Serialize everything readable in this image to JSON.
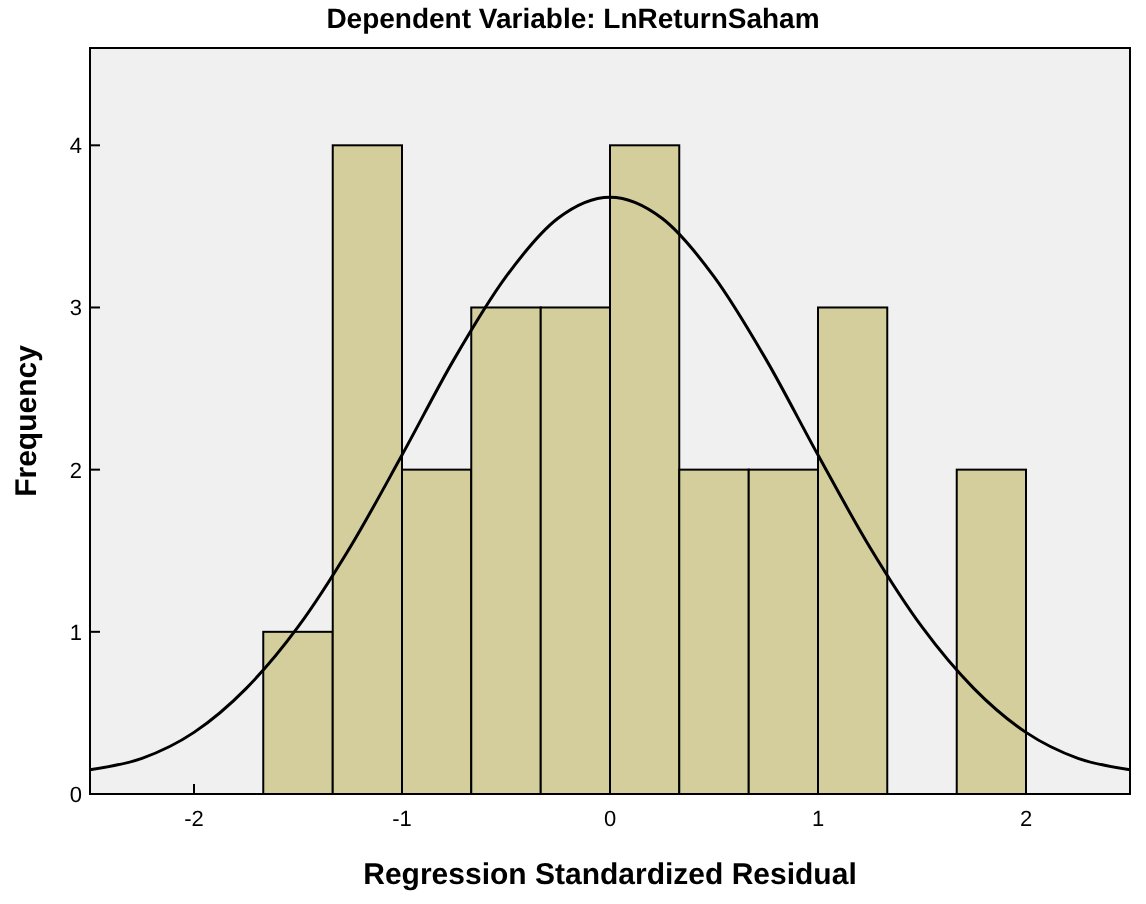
{
  "chart_data": {
    "type": "histogram",
    "title": "Dependent Variable: LnReturnSaham",
    "xlabel": "Regression Standardized Residual",
    "ylabel": "Frequency",
    "bins": [
      -1.667,
      -1.333,
      -1,
      -0.667,
      -0.333,
      0,
      0.333,
      0.667,
      1,
      1.333,
      1.667,
      2
    ],
    "values": [
      1,
      4,
      2,
      3,
      3,
      4,
      2,
      2,
      3,
      0,
      2
    ],
    "color": "#d3ce9c",
    "series": [
      {
        "type": "line",
        "color": "#000000",
        "x": [
          -2.5,
          -2.25,
          -2,
          -1.75,
          -1.5,
          -1.25,
          -1,
          -0.75,
          -0.5,
          -0.25,
          0,
          0.25,
          0.5,
          0.75,
          1,
          1.25,
          1.5,
          1.75,
          2,
          2.25,
          2.5
        ],
        "values": [
          0.15,
          0.22,
          0.38,
          0.65,
          1.03,
          1.52,
          2.09,
          2.68,
          3.19,
          3.55,
          3.68,
          3.55,
          3.19,
          2.68,
          2.09,
          1.52,
          1.03,
          0.65,
          0.38,
          0.22,
          0.15
        ]
      }
    ],
    "xlim": [
      -2.5,
      2.5
    ],
    "ylim": [
      0,
      4.6
    ],
    "xticks": [
      -2,
      -1,
      0,
      1,
      2
    ],
    "yticks": [
      0,
      1,
      2,
      3,
      4
    ],
    "grid": false
  }
}
